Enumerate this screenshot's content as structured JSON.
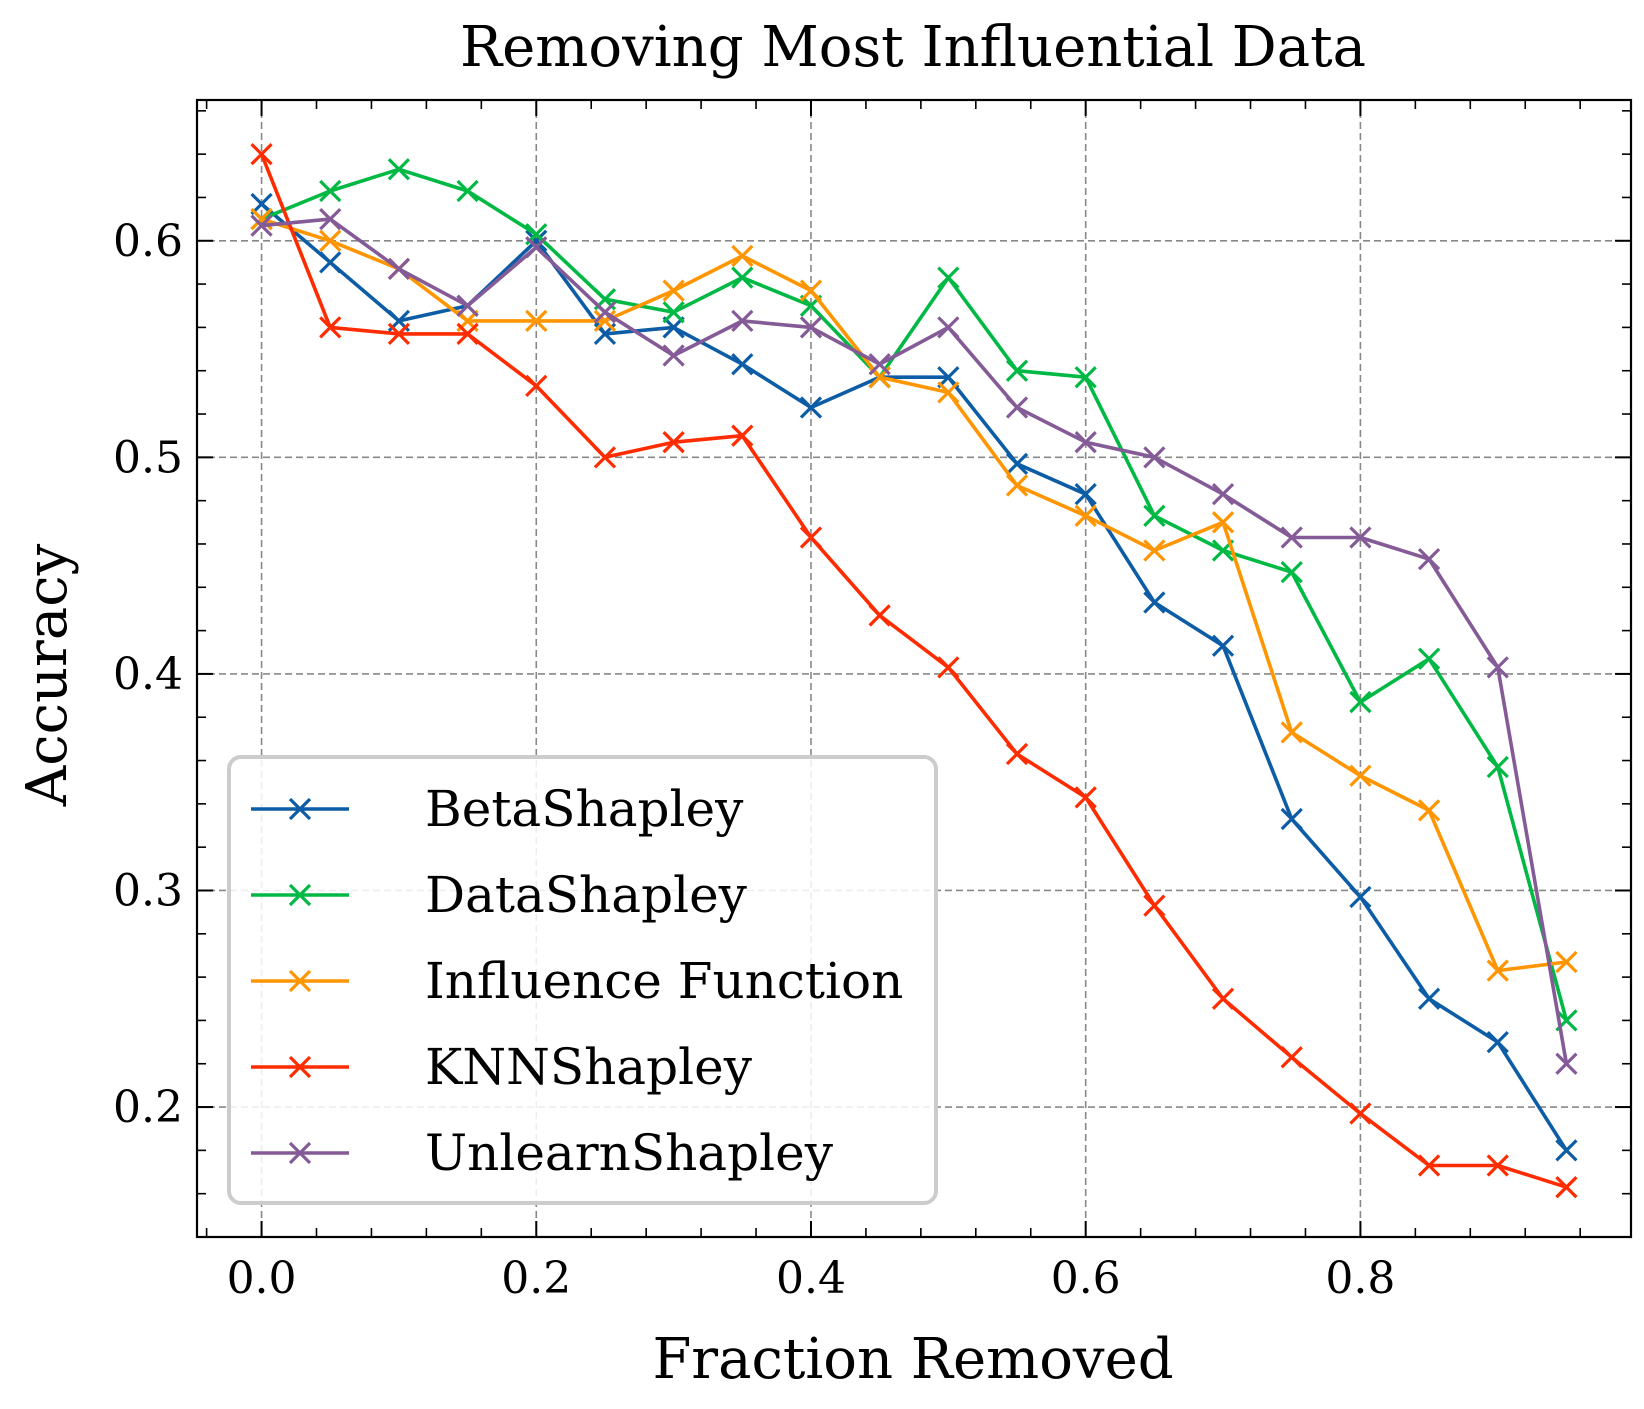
{
  "chart_data": {
    "type": "line",
    "title": "Removing Most Influential Data",
    "xlabel": "Fraction Removed",
    "ylabel": "Accuracy",
    "xlim": [
      -0.047,
      0.997
    ],
    "ylim": [
      0.14,
      0.665
    ],
    "xticks": [
      0.0,
      0.2,
      0.4,
      0.6,
      0.8
    ],
    "xtick_labels": [
      "0.0",
      "0.2",
      "0.4",
      "0.6",
      "0.8"
    ],
    "yticks": [
      0.2,
      0.3,
      0.4,
      0.5,
      0.6
    ],
    "ytick_labels": [
      "0.2",
      "0.3",
      "0.4",
      "0.5",
      "0.6"
    ],
    "grid": true,
    "legend_position": "lower-left",
    "marker": "x",
    "x": [
      0.0,
      0.05,
      0.1,
      0.15,
      0.2,
      0.25,
      0.3,
      0.35,
      0.4,
      0.45,
      0.5,
      0.55,
      0.6,
      0.65,
      0.7,
      0.75,
      0.8,
      0.85,
      0.9,
      0.95
    ],
    "series": [
      {
        "name": "BetaShapley",
        "color": "#0c5da5",
        "values": [
          0.617,
          0.59,
          0.563,
          0.57,
          0.6,
          0.557,
          0.56,
          0.543,
          0.523,
          0.537,
          0.537,
          0.497,
          0.483,
          0.433,
          0.413,
          0.333,
          0.297,
          0.25,
          0.23,
          0.18
        ]
      },
      {
        "name": "DataShapley",
        "color": "#00b945",
        "values": [
          0.61,
          0.623,
          0.633,
          0.623,
          0.603,
          0.573,
          0.567,
          0.583,
          0.57,
          0.537,
          0.583,
          0.54,
          0.537,
          0.473,
          0.457,
          0.447,
          0.387,
          0.407,
          0.357,
          0.24
        ]
      },
      {
        "name": "Influence Function",
        "color": "#ff9500",
        "values": [
          0.61,
          0.6,
          0.587,
          0.563,
          0.563,
          0.563,
          0.577,
          0.593,
          0.577,
          0.537,
          0.53,
          0.487,
          0.473,
          0.457,
          0.47,
          0.373,
          0.353,
          0.337,
          0.263,
          0.267
        ]
      },
      {
        "name": "KNNShapley",
        "color": "#ff2c00",
        "values": [
          0.64,
          0.56,
          0.557,
          0.557,
          0.533,
          0.5,
          0.507,
          0.51,
          0.463,
          0.427,
          0.403,
          0.363,
          0.343,
          0.293,
          0.25,
          0.223,
          0.197,
          0.173,
          0.173,
          0.163
        ]
      },
      {
        "name": "UnlearnShapley",
        "color": "#845b97",
        "values": [
          0.607,
          0.61,
          0.587,
          0.57,
          0.597,
          0.567,
          0.547,
          0.563,
          0.56,
          0.543,
          0.56,
          0.523,
          0.507,
          0.5,
          0.483,
          0.463,
          0.463,
          0.453,
          0.403,
          0.22
        ]
      }
    ]
  }
}
